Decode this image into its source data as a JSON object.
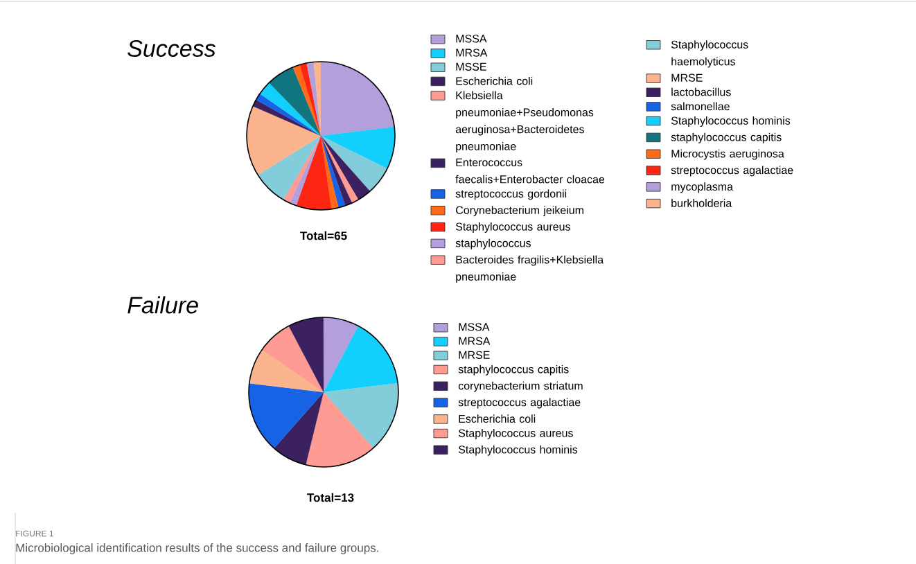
{
  "chart_data": [
    {
      "type": "pie",
      "title": "Success",
      "legend": "right",
      "categories": [
        "MSSA",
        "MRSA",
        "MSSE",
        "Escherichia coli",
        "Klebsiella pneumoniae+Pseudomonas aeruginosa+Bacteroidetes pneumoniae",
        "Enterococcus faecalis+Enterobacter cloacae",
        "streptococcus gordonii",
        "Corynebacterium jeikeium",
        "Staphylococcus aureus",
        "staphylococcus",
        "Bacteroides fragilis+Klebsiella pneumoniae",
        "Staphylococcus haemolyticus",
        "MRSE",
        "lactobacillus",
        "salmonellae",
        "Staphylococcus hominis",
        "staphylococcus capitis",
        "Microcystis aeruginosa",
        "streptococcus agalactiae",
        "mycoplasma",
        "burkholderia"
      ],
      "values": [
        23.08,
        9.23,
        6.15,
        3.08,
        1.54,
        1.54,
        1.54,
        1.54,
        7.69,
        1.54,
        1.54,
        7.69,
        15.38,
        1.54,
        1.54,
        3.08,
        6.15,
        1.54,
        1.54,
        1.54,
        1.54
      ],
      "colors": [
        "#b39fdc",
        "#12cffd",
        "#82cdd9",
        "#3b2160",
        "#fe9b93",
        "#3b2160",
        "#1763e6",
        "#fe6a17",
        "#fe2612",
        "#b39fdc",
        "#fe9b93",
        "#82cdd9",
        "#fcb48f",
        "#3b2160",
        "#1763e6",
        "#12cffd",
        "#117580",
        "#fe6a17",
        "#fe2612",
        "#b39fdc",
        "#fcb48f"
      ],
      "annotations": [
        "Total=65"
      ]
    },
    {
      "type": "pie",
      "title": "Failure",
      "legend": "right",
      "categories": [
        "MSSA",
        "MRSA",
        "MRSE",
        "staphylococcus capitis",
        "corynebacterium striatum",
        "streptococcus agalactiae",
        "Escherichia coli",
        "Staphylococcus aureus",
        "Staphylococcus hominis"
      ],
      "values": [
        7.69,
        15.38,
        15.38,
        15.38,
        7.69,
        15.38,
        7.69,
        7.69,
        7.69
      ],
      "colors": [
        "#b39fdc",
        "#12cffd",
        "#82cdd9",
        "#fe9b93",
        "#3b2160",
        "#1763e6",
        "#fcb48f",
        "#fe9b93",
        "#3b2160"
      ],
      "annotations": [
        "Total=13",
        "FIGURE 1",
        "Microbiological identification results of the success and failure groups."
      ]
    }
  ]
}
